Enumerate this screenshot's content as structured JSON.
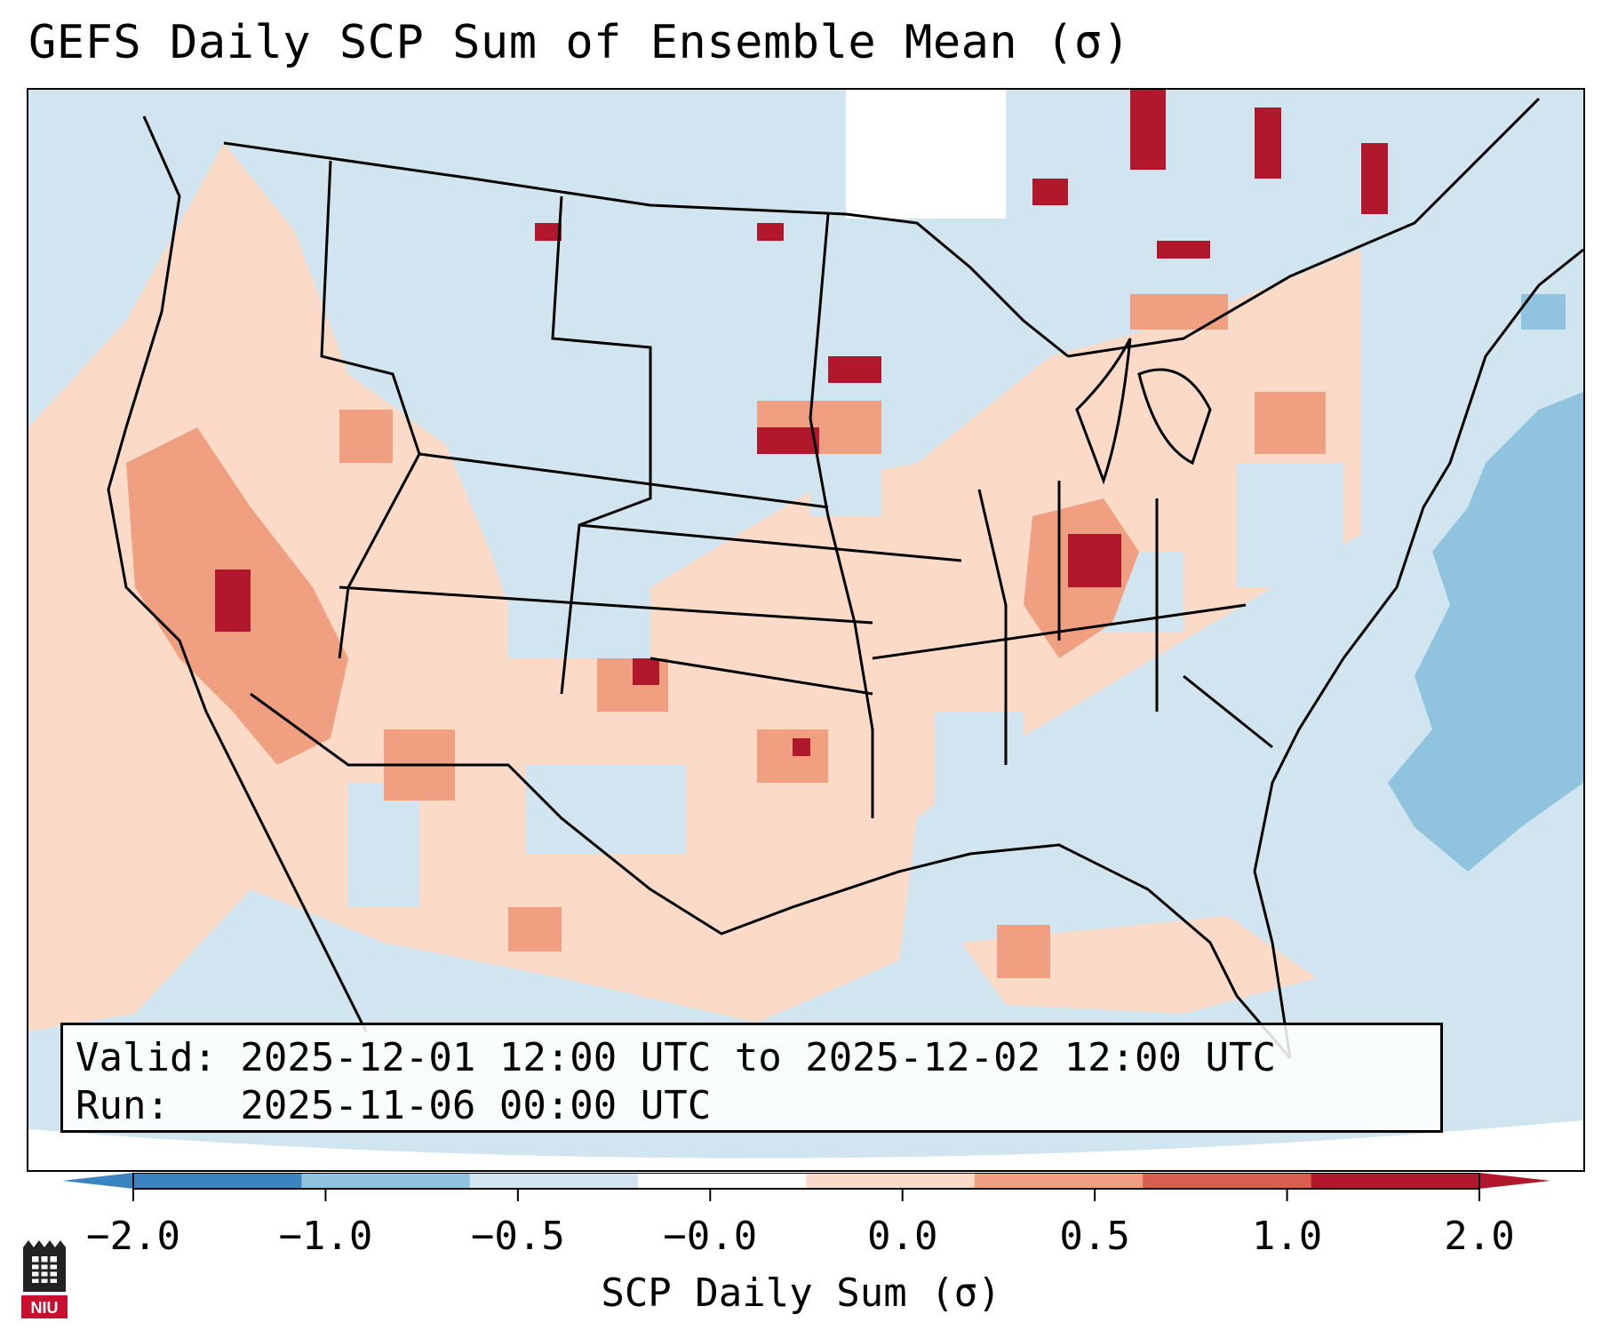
{
  "title": "GEFS Daily SCP Sum of Ensemble Mean (σ)",
  "info": {
    "valid_line": "Valid: 2025-12-01 12:00 UTC to 2025-12-02 12:00 UTC",
    "run_line": "Run:   2025-11-06 00:00 UTC"
  },
  "colorbar": {
    "label": "SCP Daily Sum (σ)",
    "ticks": [
      "−2.0",
      "−1.0",
      "−0.5",
      "−0.0",
      "0.0",
      "0.5",
      "1.0",
      "2.0"
    ],
    "colors": [
      "#3a85c0",
      "#8fc3de",
      "#d1e5f0",
      "#ffffff",
      "#fbdbc7",
      "#f0a081",
      "#d6604d",
      "#b2182b"
    ]
  },
  "logo": {
    "text": "NIU"
  },
  "map": {
    "ocean_color": "#d1e5f0",
    "field_description_hidden": false
  }
}
